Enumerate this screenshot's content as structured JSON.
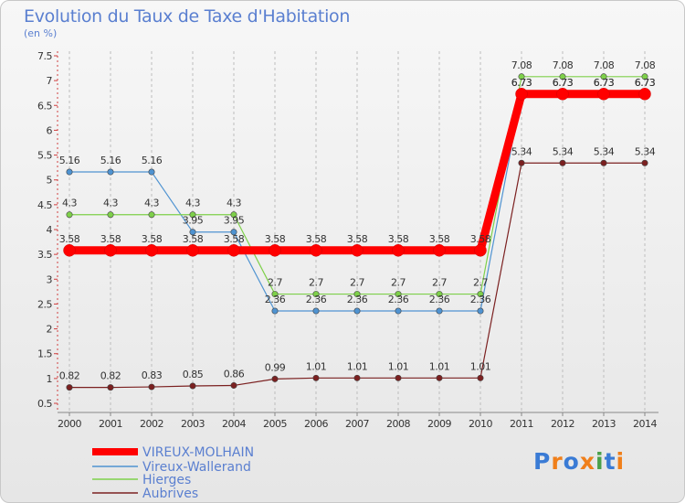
{
  "title": "Evolution du Taux de Taxe d'Habitation",
  "subtitle": "(en %)",
  "logo": {
    "text": "Proxiti",
    "colors": [
      "#3a7bd5",
      "#f07f1a",
      "#3a7bd5",
      "#f07f1a",
      "#4aa04a",
      "#3a7bd5",
      "#f07f1a"
    ]
  },
  "chart_data": {
    "type": "line",
    "title": "Evolution du Taux de Taxe d'Habitation",
    "ylabel": "(en %)",
    "xlabel": "",
    "x": [
      "2000",
      "2001",
      "2002",
      "2003",
      "2004",
      "2005",
      "2006",
      "2007",
      "2008",
      "2009",
      "2010",
      "2011",
      "2012",
      "2013",
      "2014"
    ],
    "ylim": [
      0.5,
      7.5
    ],
    "yticks": [
      "0.5",
      "1",
      "1.5",
      "2",
      "2.5",
      "3",
      "3.5",
      "4",
      "4.5",
      "5",
      "5.5",
      "6",
      "6.5",
      "7",
      "7.5"
    ],
    "grid": "vertical dashed",
    "legend": "bottom-left",
    "series": [
      {
        "name": "VIREUX-MOLHAIN",
        "color": "#ff0000",
        "values": [
          3.58,
          3.58,
          3.58,
          3.58,
          3.58,
          3.58,
          3.58,
          3.58,
          3.58,
          3.58,
          3.58,
          6.73,
          6.73,
          6.73,
          6.73
        ],
        "labels": [
          "3.58",
          "3.58",
          "3.58",
          "3.58",
          "3.58",
          "3.58",
          "3.58",
          "3.58",
          "3.58",
          "3.58",
          "3.58",
          "6.73",
          "6.73",
          "6.73",
          "6.73"
        ]
      },
      {
        "name": "Vireux-Wallerand",
        "color": "#4f93d1",
        "values": [
          5.16,
          5.16,
          5.16,
          3.95,
          3.95,
          2.36,
          2.36,
          2.36,
          2.36,
          2.36,
          2.36,
          6.73,
          6.73,
          6.73,
          6.73
        ],
        "labels": [
          "5.16",
          "5.16",
          "5.16",
          "3.95",
          "3.95",
          "2.36",
          "2.36",
          "2.36",
          "2.36",
          "2.36",
          "2.36",
          "6.73",
          "6.73",
          "6.73",
          "6.73"
        ]
      },
      {
        "name": "Hierges",
        "color": "#7ed04a",
        "values": [
          4.3,
          4.3,
          4.3,
          4.3,
          4.3,
          2.7,
          2.7,
          2.7,
          2.7,
          2.7,
          2.7,
          7.08,
          7.08,
          7.08,
          7.08
        ],
        "labels": [
          "4.3",
          "4.3",
          "4.3",
          "4.3",
          "4.3",
          "2.7",
          "2.7",
          "2.7",
          "2.7",
          "2.7",
          "2.7",
          "7.08",
          "7.08",
          "7.08",
          "7.08"
        ]
      },
      {
        "name": "Aubrives",
        "color": "#7b2020",
        "values": [
          0.82,
          0.82,
          0.83,
          0.85,
          0.86,
          0.99,
          1.01,
          1.01,
          1.01,
          1.01,
          1.01,
          5.34,
          5.34,
          5.34,
          5.34
        ],
        "labels": [
          "0.82",
          "0.82",
          "0.83",
          "0.85",
          "0.86",
          "0.99",
          "1.01",
          "1.01",
          "1.01",
          "1.01",
          "1.01",
          "5.34",
          "5.34",
          "5.34",
          "5.34"
        ]
      }
    ]
  }
}
